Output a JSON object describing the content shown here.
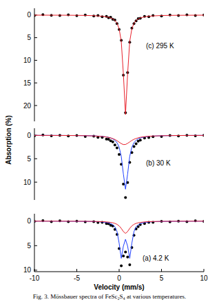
{
  "chart_data": [
    {
      "type": "scatter",
      "annotation": "(c) 295 K",
      "x": [
        -10,
        -9,
        -8,
        -7,
        -6,
        -5,
        -4,
        -3,
        -2.5,
        -2,
        -1.5,
        -1.25,
        -1,
        -0.75,
        -0.5,
        -0.25,
        0,
        0.25,
        0.5,
        0.75,
        1,
        1.25,
        1.5,
        1.75,
        2,
        2.25,
        2.5,
        3,
        3.5,
        4,
        5,
        6,
        7,
        8,
        9,
        10
      ],
      "xlim": [
        -10,
        10
      ],
      "ylim": [
        23.5,
        -1.5
      ],
      "yticks": [
        0,
        5,
        10,
        15,
        20
      ],
      "tick_labels": "y",
      "series": [
        {
          "type": "scatter",
          "color": "#000000",
          "marker": "circle",
          "values": [
            0.1,
            -0.1,
            0.05,
            0.1,
            -0.05,
            0.15,
            0.0,
            0.2,
            0.1,
            0.35,
            0.3,
            0.6,
            0.5,
            0.95,
            1.1,
            1.9,
            3.2,
            5.6,
            13.3,
            21.6,
            12.7,
            6.0,
            2.9,
            1.9,
            1.3,
            0.8,
            0.7,
            0.3,
            0.35,
            0.1,
            0.2,
            0.0,
            0.1,
            -0.05,
            0.1,
            0.0
          ]
        },
        {
          "type": "line",
          "color": "#e8202a",
          "line_style": "solid",
          "values": [
            0.02,
            0.02,
            0.03,
            0.03,
            0.04,
            0.06,
            0.08,
            0.14,
            0.19,
            0.26,
            0.39,
            0.48,
            0.63,
            0.85,
            1.19,
            1.82,
            3.04,
            5.82,
            13.0,
            22.0,
            13.0,
            5.82,
            3.04,
            1.82,
            1.19,
            0.85,
            0.63,
            0.39,
            0.26,
            0.19,
            0.1,
            0.07,
            0.05,
            0.04,
            0.03,
            0.02
          ]
        }
      ]
    },
    {
      "type": "scatter",
      "annotation": "(b) 30 K",
      "y_label": "Absorption (%)",
      "x": [
        -10,
        -9,
        -8,
        -7,
        -6,
        -5,
        -4,
        -3,
        -2.5,
        -2,
        -1.5,
        -1.25,
        -1,
        -0.75,
        -0.5,
        -0.25,
        0,
        0.25,
        0.5,
        0.75,
        1,
        1.25,
        1.5,
        1.75,
        2,
        2.25,
        2.5,
        3,
        3.5,
        4,
        5,
        6,
        7,
        8,
        9,
        10
      ],
      "xlim": [
        -10,
        10
      ],
      "ylim": [
        13.8,
        -1.5
      ],
      "yticks": [
        0,
        5,
        10
      ],
      "tick_labels": "y",
      "series": [
        {
          "type": "scatter",
          "color": "#000000",
          "marker": "circle",
          "values": [
            0.1,
            -0.05,
            0.1,
            0.0,
            0.15,
            0.05,
            0.25,
            0.2,
            0.45,
            0.45,
            0.8,
            0.85,
            1.2,
            1.4,
            2.05,
            2.7,
            4.1,
            6.2,
            10.4,
            13.3,
            10.1,
            5.8,
            3.7,
            2.4,
            1.8,
            1.25,
            1.05,
            0.6,
            0.5,
            0.3,
            0.25,
            0.05,
            0.15,
            0.0,
            0.1,
            0.0
          ]
        },
        {
          "type": "line",
          "color": "#1f3fff",
          "line_style": "solid",
          "values": [
            0.016,
            0.02,
            0.024,
            0.03,
            0.04,
            0.06,
            0.08,
            0.13,
            0.17,
            0.24,
            0.35,
            0.44,
            0.57,
            0.76,
            1.07,
            1.59,
            2.54,
            4.49,
            8.27,
            11.5,
            8.27,
            4.49,
            2.54,
            1.59,
            1.07,
            0.76,
            0.57,
            0.35,
            0.24,
            0.17,
            0.1,
            0.07,
            0.05,
            0.035,
            0.027,
            0.021
          ]
        },
        {
          "type": "line",
          "color": "#e8202a",
          "line_style": "solid",
          "values": [
            0.018,
            0.021,
            0.027,
            0.034,
            0.044,
            0.062,
            0.09,
            0.14,
            0.19,
            0.26,
            0.37,
            0.45,
            0.56,
            0.71,
            0.9,
            1.16,
            1.47,
            1.78,
            1.98,
            1.96,
            1.72,
            1.41,
            1.1,
            0.86,
            0.68,
            0.54,
            0.43,
            0.3,
            0.21,
            0.16,
            0.1,
            0.067,
            0.048,
            0.036,
            0.028,
            0.022
          ]
        }
      ]
    },
    {
      "type": "scatter",
      "annotation": "(a) 4.2 K",
      "x_label": "Velocity (mm/s)",
      "x": [
        -10,
        -9,
        -8,
        -7,
        -6,
        -5,
        -4,
        -3,
        -2.5,
        -2,
        -1.5,
        -1.25,
        -1,
        -0.75,
        -0.5,
        -0.25,
        0,
        0.25,
        0.5,
        0.75,
        1,
        1.25,
        1.5,
        1.75,
        2,
        2.25,
        2.5,
        3,
        3.5,
        4,
        5,
        6,
        7,
        8,
        9,
        10
      ],
      "xlim": [
        -10,
        10
      ],
      "xticks": [
        -10,
        -5,
        0,
        5,
        10
      ],
      "ylim": [
        10.3,
        -1.5
      ],
      "yticks": [
        0,
        5,
        10
      ],
      "series": [
        {
          "type": "scatter",
          "color": "#000000",
          "marker": "circle",
          "values": [
            0.05,
            -0.1,
            0.1,
            -0.05,
            0.1,
            0.0,
            0.15,
            0.1,
            0.3,
            0.25,
            0.5,
            0.55,
            0.85,
            1.0,
            1.7,
            2.7,
            5.6,
            9.1,
            7.1,
            6.3,
            7.3,
            8.9,
            5.4,
            2.9,
            1.6,
            1.15,
            0.7,
            0.5,
            0.25,
            0.25,
            0.05,
            0.15,
            0.0,
            0.1,
            -0.05,
            0.05
          ]
        },
        {
          "type": "line",
          "color": "#1f3fff",
          "line_style": "solid",
          "values": [
            0.011,
            0.013,
            0.016,
            0.021,
            0.028,
            0.039,
            0.058,
            0.094,
            0.127,
            0.181,
            0.282,
            0.369,
            0.502,
            0.732,
            1.166,
            2.12,
            4.51,
            7.58,
            5.1,
            3.7,
            5.1,
            7.58,
            4.51,
            2.12,
            1.166,
            0.732,
            0.502,
            0.282,
            0.181,
            0.127,
            0.073,
            0.047,
            0.033,
            0.025,
            0.019,
            0.015
          ]
        },
        {
          "type": "line",
          "color": "#e8202a",
          "line_style": "solid",
          "values": [
            0.0078,
            0.0094,
            0.0117,
            0.0149,
            0.0196,
            0.027,
            0.039,
            0.062,
            0.083,
            0.114,
            0.166,
            0.207,
            0.263,
            0.345,
            0.468,
            0.661,
            0.976,
            1.476,
            2.13,
            2.5,
            2.13,
            1.476,
            0.976,
            0.661,
            0.468,
            0.345,
            0.263,
            0.166,
            0.114,
            0.083,
            0.049,
            0.032,
            0.023,
            0.017,
            0.013,
            0.0105
          ]
        }
      ]
    }
  ],
  "caption": "Fig. 3.  Mössbauer spectra of FeSc₂S₄ at various temperatures."
}
